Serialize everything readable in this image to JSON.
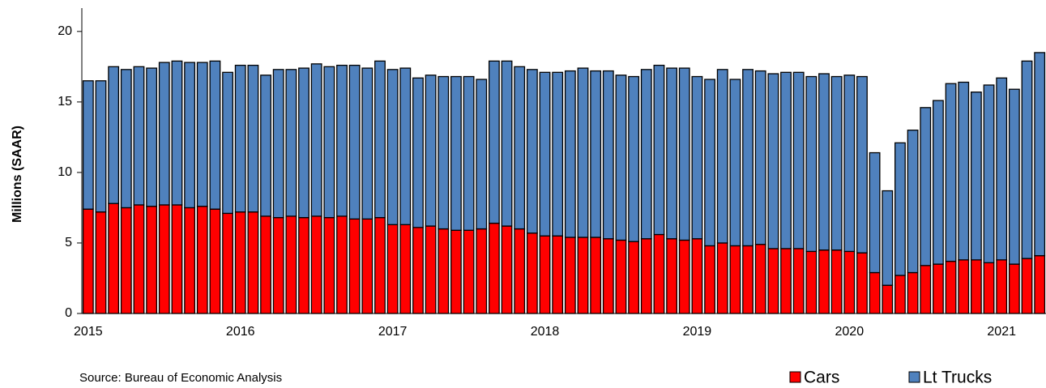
{
  "chart_data": {
    "type": "stacked_bar",
    "y_label": "Millions (SAAR)",
    "source": "Source: Bureau of Economic Analysis",
    "categories": [
      "2015",
      null,
      null,
      null,
      null,
      null,
      null,
      null,
      null,
      null,
      null,
      null,
      "2016",
      null,
      null,
      null,
      null,
      null,
      null,
      null,
      null,
      null,
      null,
      null,
      "2017",
      null,
      null,
      null,
      null,
      null,
      null,
      null,
      null,
      null,
      null,
      null,
      "2018",
      null,
      null,
      null,
      null,
      null,
      null,
      null,
      null,
      null,
      null,
      null,
      "2019",
      null,
      null,
      null,
      null,
      null,
      null,
      null,
      null,
      null,
      null,
      null,
      "2020",
      null,
      null,
      null,
      null,
      null,
      null,
      null,
      null,
      null,
      null,
      null,
      "2021",
      null,
      null,
      null
    ],
    "series": [
      {
        "name": "Cars",
        "color": "#ff0000",
        "values": [
          7.4,
          7.2,
          7.8,
          7.5,
          7.7,
          7.6,
          7.7,
          7.7,
          7.5,
          7.6,
          7.4,
          7.1,
          7.2,
          7.2,
          6.9,
          6.8,
          6.9,
          6.8,
          6.9,
          6.8,
          6.9,
          6.7,
          6.7,
          6.8,
          6.3,
          6.3,
          6.1,
          6.2,
          6.0,
          5.9,
          5.9,
          6.0,
          6.4,
          6.2,
          6.0,
          5.7,
          5.5,
          5.5,
          5.4,
          5.4,
          5.4,
          5.3,
          5.2,
          5.1,
          5.3,
          5.6,
          5.3,
          5.2,
          5.3,
          4.8,
          5.0,
          4.8,
          4.8,
          4.9,
          4.6,
          4.6,
          4.6,
          4.4,
          4.5,
          4.5,
          4.4,
          4.3,
          2.9,
          2.0,
          2.7,
          2.9,
          3.4,
          3.5,
          3.7,
          3.8,
          3.8,
          3.6,
          3.8,
          3.5,
          3.9,
          4.1
        ]
      },
      {
        "name": "Lt Trucks",
        "color": "#4f81bd",
        "values": [
          9.1,
          9.3,
          9.7,
          9.8,
          9.8,
          9.8,
          10.1,
          10.2,
          10.3,
          10.2,
          10.5,
          10.0,
          10.4,
          10.4,
          10.0,
          10.5,
          10.4,
          10.6,
          10.8,
          10.7,
          10.7,
          10.9,
          10.7,
          11.1,
          11.0,
          11.1,
          10.6,
          10.7,
          10.8,
          10.9,
          10.9,
          10.6,
          11.5,
          11.7,
          11.5,
          11.6,
          11.6,
          11.6,
          11.8,
          12.0,
          11.8,
          11.9,
          11.7,
          11.7,
          12.0,
          12.0,
          12.1,
          12.2,
          11.5,
          11.8,
          12.3,
          11.8,
          12.5,
          12.3,
          12.4,
          12.5,
          12.5,
          12.4,
          12.5,
          12.3,
          12.5,
          12.5,
          8.5,
          6.7,
          9.4,
          10.1,
          11.2,
          11.6,
          12.6,
          12.6,
          11.9,
          12.6,
          12.9,
          12.4,
          14.0,
          14.4
        ]
      }
    ],
    "ylim": [
      0,
      22
    ],
    "yticks": [
      0,
      5,
      10,
      15,
      20
    ]
  }
}
